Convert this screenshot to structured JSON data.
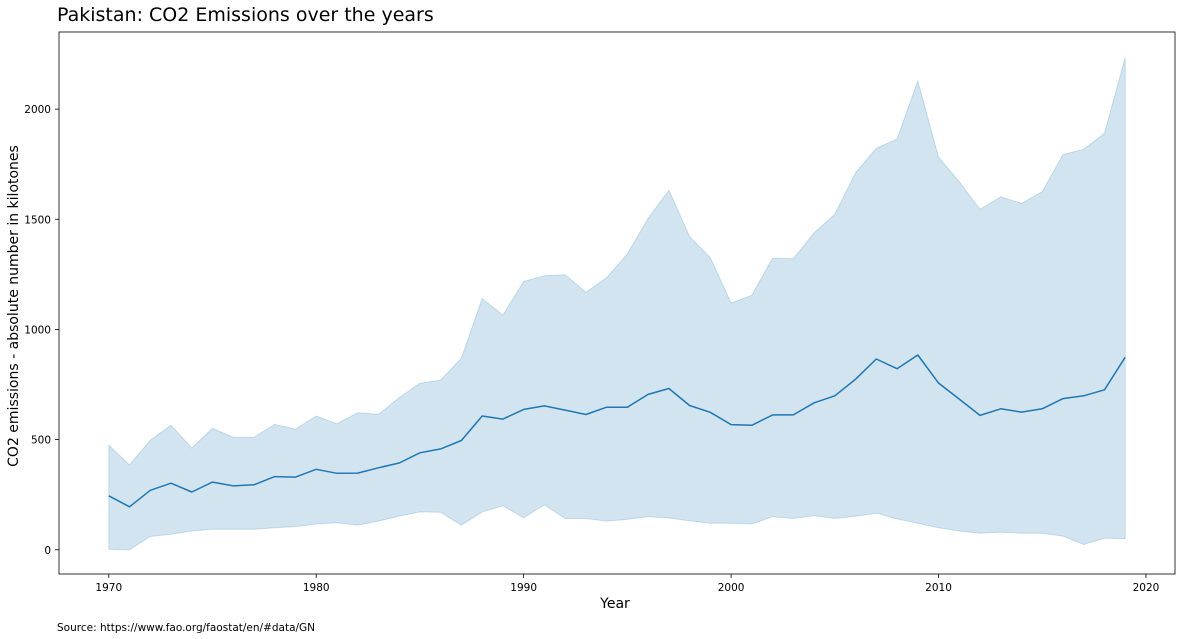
{
  "chart_data": {
    "type": "line",
    "title": "Pakistan: CO2 Emissions over the years",
    "xlabel": "Year",
    "ylabel": "CO2 emissions - absolute number in kilotones",
    "source": "Source: https://www.fao.org/faostat/en/#data/GN",
    "xlim": [
      1967.6,
      2021.4
    ],
    "ylim": [
      -110,
      2350
    ],
    "x_ticks": [
      1970,
      1980,
      1990,
      2000,
      2010,
      2020
    ],
    "y_ticks": [
      0,
      500,
      1000,
      1500,
      2000
    ],
    "grid": false,
    "legend": "none",
    "colors": {
      "line": "#1f77b4",
      "band": "#1f77b4"
    },
    "x": [
      1970,
      1971,
      1972,
      1973,
      1974,
      1975,
      1976,
      1977,
      1978,
      1979,
      1980,
      1981,
      1982,
      1983,
      1984,
      1985,
      1986,
      1987,
      1988,
      1989,
      1990,
      1991,
      1992,
      1993,
      1994,
      1995,
      1996,
      1997,
      1998,
      1999,
      2000,
      2001,
      2002,
      2003,
      2004,
      2005,
      2006,
      2007,
      2008,
      2009,
      2010,
      2011,
      2012,
      2013,
      2014,
      2015,
      2016,
      2017,
      2018,
      2019
    ],
    "series": [
      {
        "values": [
          245,
          195,
          270,
          302,
          262,
          307,
          290,
          295,
          332,
          330,
          365,
          347,
          348,
          372,
          394,
          440,
          458,
          496,
          607,
          593,
          637,
          653,
          634,
          614,
          647,
          647,
          705,
          732,
          655,
          624,
          568,
          565,
          612,
          612,
          667,
          699,
          774,
          866,
          822,
          884,
          757,
          684,
          610,
          640,
          625,
          640,
          686,
          699,
          726,
          874
        ]
      }
    ],
    "band": {
      "lower": [
        2,
        0,
        60,
        70,
        85,
        93,
        93,
        93,
        100,
        105,
        117,
        122,
        112,
        130,
        153,
        172,
        170,
        112,
        172,
        200,
        145,
        204,
        142,
        142,
        130,
        138,
        150,
        144,
        132,
        120,
        120,
        117,
        150,
        142,
        155,
        142,
        152,
        166,
        140,
        120,
        100,
        85,
        75,
        80,
        75,
        75,
        62,
        24,
        53,
        50
      ],
      "upper": [
        474,
        385,
        497,
        565,
        462,
        551,
        511,
        511,
        569,
        547,
        607,
        572,
        622,
        615,
        690,
        756,
        770,
        870,
        1140,
        1065,
        1218,
        1244,
        1248,
        1168,
        1235,
        1343,
        1504,
        1632,
        1422,
        1325,
        1120,
        1155,
        1324,
        1321,
        1439,
        1522,
        1711,
        1822,
        1864,
        2128,
        1782,
        1670,
        1545,
        1602,
        1572,
        1625,
        1794,
        1818,
        1890,
        2235
      ]
    }
  }
}
